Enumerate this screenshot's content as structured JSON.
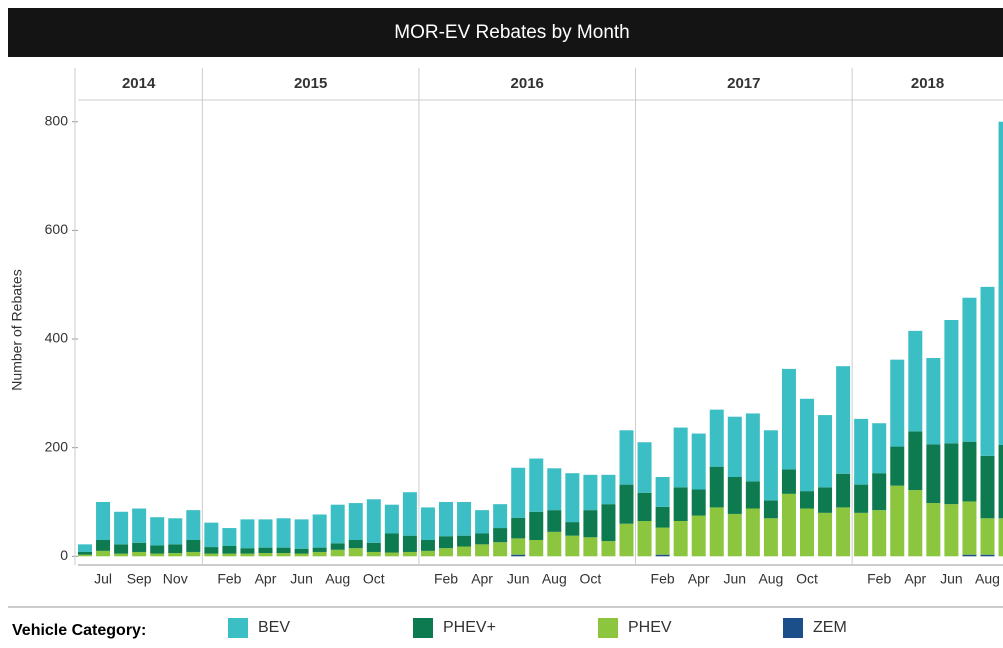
{
  "chart_data": {
    "type": "bar",
    "stacked": true,
    "title": "MOR-EV Rebates by Month",
    "ylabel": "Number of Rebates",
    "legend_title": "Vehicle Category:",
    "ylim": [
      -16,
      840
    ],
    "yticks": [
      0,
      200,
      400,
      600,
      800
    ],
    "grid": false,
    "series": [
      {
        "name": "BEV",
        "color": "#3bbfc4"
      },
      {
        "name": "PHEV+",
        "color": "#0e7a4f"
      },
      {
        "name": "PHEV",
        "color": "#8cc63f"
      },
      {
        "name": "ZEM",
        "color": "#1a4f8a"
      }
    ],
    "stack_order": [
      "ZEM",
      "PHEV",
      "PHEV+",
      "BEV"
    ],
    "panels": [
      {
        "label": "2014",
        "categories": [
          null,
          "Jul",
          null,
          "Sep",
          null,
          "Nov",
          null
        ],
        "values": [
          [
            14,
            70,
            60,
            63,
            52,
            48,
            55
          ],
          [
            5,
            20,
            17,
            17,
            15,
            16,
            22
          ],
          [
            3,
            10,
            5,
            8,
            5,
            6,
            8
          ],
          [
            0,
            0,
            0,
            0,
            0,
            0,
            0
          ]
        ]
      },
      {
        "label": "2015",
        "categories": [
          null,
          "Feb",
          null,
          "Apr",
          null,
          "Jun",
          null,
          "Aug",
          null,
          "Oct",
          null,
          null
        ],
        "values": [
          [
            45,
            33,
            53,
            52,
            54,
            54,
            61,
            71,
            68,
            80,
            53,
            80
          ],
          [
            12,
            14,
            10,
            10,
            10,
            9,
            8,
            12,
            15,
            17,
            35,
            30
          ],
          [
            5,
            5,
            5,
            6,
            6,
            5,
            8,
            12,
            15,
            8,
            7,
            8
          ],
          [
            0,
            0,
            0,
            0,
            0,
            0,
            0,
            0,
            0,
            0,
            0,
            0
          ]
        ]
      },
      {
        "label": "2016",
        "categories": [
          null,
          "Feb",
          null,
          "Apr",
          null,
          "Jun",
          null,
          "Aug",
          null,
          "Oct",
          null,
          null
        ],
        "values": [
          [
            60,
            63,
            62,
            43,
            44,
            92,
            98,
            77,
            90,
            65,
            54,
            100
          ],
          [
            20,
            22,
            20,
            20,
            26,
            38,
            52,
            40,
            25,
            50,
            68,
            72
          ],
          [
            10,
            15,
            18,
            22,
            26,
            30,
            30,
            45,
            38,
            35,
            28,
            60
          ],
          [
            0,
            0,
            0,
            0,
            0,
            3,
            0,
            0,
            0,
            0,
            0,
            0
          ]
        ]
      },
      {
        "label": "2017",
        "categories": [
          null,
          "Feb",
          null,
          "Apr",
          null,
          "Jun",
          null,
          "Aug",
          null,
          "Oct",
          null,
          null
        ],
        "values": [
          [
            93,
            55,
            110,
            103,
            105,
            111,
            125,
            129,
            185,
            170,
            133,
            198
          ],
          [
            52,
            38,
            62,
            48,
            75,
            68,
            50,
            33,
            45,
            32,
            47,
            62
          ],
          [
            65,
            50,
            65,
            75,
            90,
            78,
            88,
            70,
            115,
            88,
            80,
            90
          ],
          [
            0,
            3,
            0,
            0,
            0,
            0,
            0,
            0,
            0,
            0,
            0,
            0
          ]
        ]
      },
      {
        "label": "2018",
        "categories": [
          null,
          "Feb",
          null,
          "Apr",
          null,
          "Jun",
          null,
          "Aug",
          null
        ],
        "values": [
          [
            121,
            92,
            160,
            185,
            159,
            227,
            265,
            311,
            595
          ],
          [
            52,
            68,
            72,
            108,
            108,
            112,
            110,
            115,
            135
          ],
          [
            80,
            85,
            130,
            122,
            98,
            96,
            98,
            67,
            70
          ],
          [
            0,
            0,
            0,
            0,
            0,
            0,
            3,
            3,
            0
          ]
        ]
      }
    ]
  }
}
